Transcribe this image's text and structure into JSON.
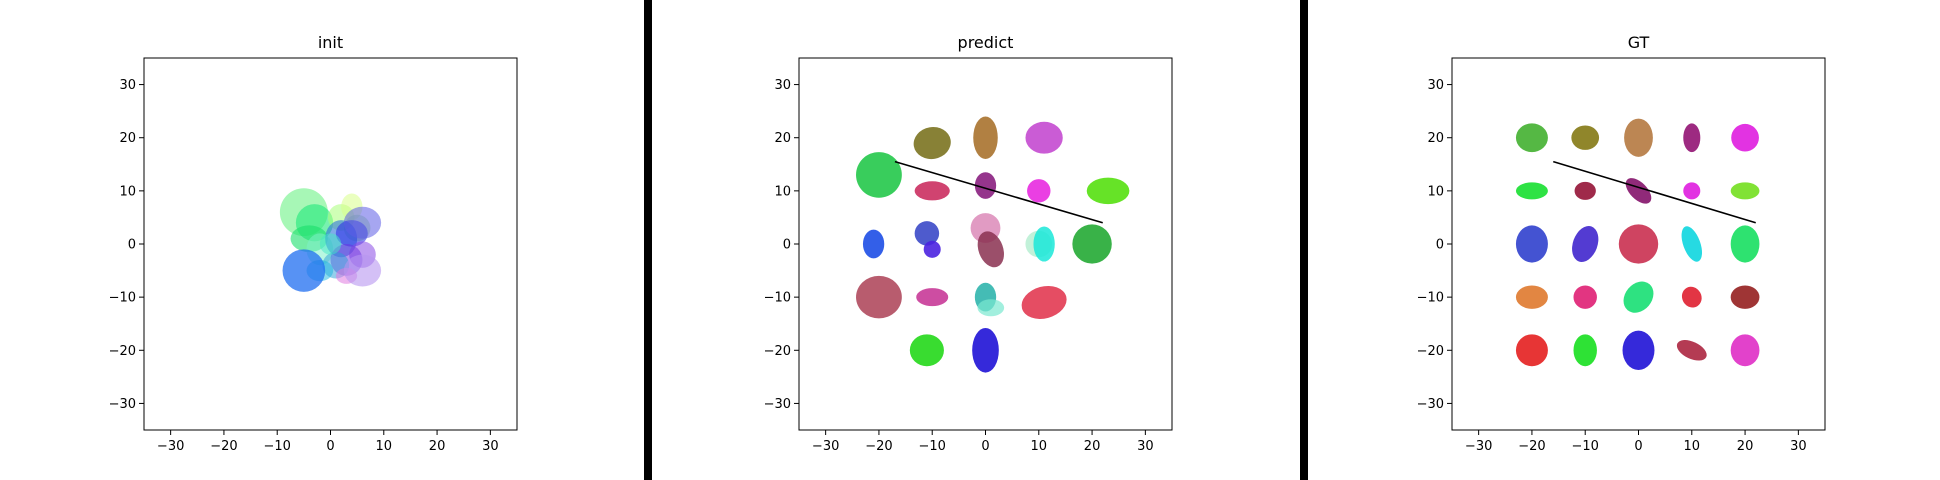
{
  "chart_data": [
    {
      "type": "scatter",
      "title": "init",
      "xlim": [
        -35,
        35
      ],
      "ylim": [
        -35,
        35
      ],
      "xticks": [
        -30,
        -20,
        -10,
        0,
        10,
        20,
        30
      ],
      "yticks": [
        -30,
        -20,
        -10,
        0,
        10,
        20,
        30
      ],
      "xlabel": "",
      "ylabel": "",
      "grid": false,
      "ellipses": [
        {
          "cx": -5,
          "cy": 6,
          "rx": 4.5,
          "ry": 4.5,
          "color": "#5ef07a",
          "opacity": 0.55
        },
        {
          "cx": -3,
          "cy": 4,
          "rx": 3.5,
          "ry": 3.5,
          "color": "#1ee87a",
          "opacity": 0.6
        },
        {
          "cx": 2,
          "cy": 5,
          "rx": 2.5,
          "ry": 2.5,
          "color": "#a9ff7a",
          "opacity": 0.55
        },
        {
          "cx": 4,
          "cy": 7,
          "rx": 2,
          "ry": 2.5,
          "color": "#d8ff8a",
          "opacity": 0.55
        },
        {
          "cx": 5,
          "cy": 3,
          "rx": 2.5,
          "ry": 2.5,
          "color": "#9bdb8a",
          "opacity": 0.5
        },
        {
          "cx": -4,
          "cy": 1,
          "rx": 3.5,
          "ry": 2.5,
          "color": "#19e06a",
          "opacity": 0.6
        },
        {
          "cx": -2,
          "cy": -1,
          "rx": 2.5,
          "ry": 3,
          "color": "#7ef0c8",
          "opacity": 0.55
        },
        {
          "cx": 2,
          "cy": 1,
          "rx": 3,
          "ry": 3.5,
          "color": "#2b73d8",
          "opacity": 0.6
        },
        {
          "cx": 4,
          "cy": 2,
          "rx": 3,
          "ry": 2.5,
          "color": "#2a2ae8",
          "opacity": 0.55
        },
        {
          "cx": 6,
          "cy": 4,
          "rx": 3.5,
          "ry": 3,
          "color": "#5c5ce6",
          "opacity": 0.55
        },
        {
          "cx": 6,
          "cy": -2,
          "rx": 2.5,
          "ry": 2.5,
          "color": "#8a4ae6",
          "opacity": 0.55
        },
        {
          "cx": 3,
          "cy": -3,
          "rx": 3,
          "ry": 3,
          "color": "#6b2ee0",
          "opacity": 0.5
        },
        {
          "cx": 1,
          "cy": -4,
          "rx": 2.5,
          "ry": 2.5,
          "color": "#2aa0d8",
          "opacity": 0.5
        },
        {
          "cx": 3,
          "cy": -6,
          "rx": 2,
          "ry": 1.5,
          "color": "#e07ae0",
          "opacity": 0.55
        },
        {
          "cx": 6,
          "cy": -5,
          "rx": 3.5,
          "ry": 3,
          "color": "#b896f0",
          "opacity": 0.6
        },
        {
          "cx": -2,
          "cy": -5,
          "rx": 2.5,
          "ry": 2,
          "color": "#19b6e0",
          "opacity": 0.5
        },
        {
          "cx": -5,
          "cy": -5,
          "rx": 4,
          "ry": 4,
          "color": "#1f6ef0",
          "opacity": 0.75
        },
        {
          "cx": 0,
          "cy": 0,
          "rx": 2,
          "ry": 2,
          "color": "#41e8c6",
          "opacity": 0.5
        }
      ],
      "lines": []
    },
    {
      "type": "scatter",
      "title": "predict",
      "xlim": [
        -35,
        35
      ],
      "ylim": [
        -35,
        35
      ],
      "xticks": [
        -30,
        -20,
        -10,
        0,
        10,
        20,
        30
      ],
      "yticks": [
        -30,
        -20,
        -10,
        0,
        10,
        20,
        30
      ],
      "xlabel": "",
      "ylabel": "",
      "grid": false,
      "ellipses": [
        {
          "cx": -10,
          "cy": 19,
          "rx": 3.5,
          "ry": 3,
          "color": "#7b7320",
          "opacity": 0.9,
          "angle": 10
        },
        {
          "cx": 0,
          "cy": 20,
          "rx": 2.3,
          "ry": 4,
          "color": "#a8722e",
          "opacity": 0.9
        },
        {
          "cx": 11,
          "cy": 20,
          "rx": 3.5,
          "ry": 3,
          "color": "#c44ad0",
          "opacity": 0.9
        },
        {
          "cx": -20,
          "cy": 13,
          "rx": 4.3,
          "ry": 4.3,
          "color": "#23c84a",
          "opacity": 0.9
        },
        {
          "cx": -10,
          "cy": 10,
          "rx": 3.3,
          "ry": 1.8,
          "color": "#cb2f60",
          "opacity": 0.9
        },
        {
          "cx": 0,
          "cy": 11,
          "rx": 2,
          "ry": 2.5,
          "color": "#8a1f80",
          "opacity": 0.9
        },
        {
          "cx": 10,
          "cy": 10,
          "rx": 2.2,
          "ry": 2.2,
          "color": "#e82ae0",
          "opacity": 0.9
        },
        {
          "cx": 23,
          "cy": 10,
          "rx": 4,
          "ry": 2.5,
          "color": "#55e010",
          "opacity": 0.9
        },
        {
          "cx": -21,
          "cy": 0,
          "rx": 2,
          "ry": 2.7,
          "color": "#1d4ee6",
          "opacity": 0.9
        },
        {
          "cx": -11,
          "cy": 2,
          "rx": 2.3,
          "ry": 2.3,
          "color": "#3b49c8",
          "opacity": 0.9
        },
        {
          "cx": -10,
          "cy": -1,
          "rx": 1.6,
          "ry": 1.6,
          "color": "#4b22e0",
          "opacity": 0.9
        },
        {
          "cx": 0,
          "cy": 3,
          "rx": 2.8,
          "ry": 2.8,
          "color": "#dc8ab8",
          "opacity": 0.85
        },
        {
          "cx": 1,
          "cy": -1,
          "rx": 2.3,
          "ry": 3.5,
          "color": "#8a3050",
          "opacity": 0.85,
          "angle": 20
        },
        {
          "cx": 10,
          "cy": 0,
          "rx": 2.5,
          "ry": 2.5,
          "color": "#9ae8c0",
          "opacity": 0.6
        },
        {
          "cx": 11,
          "cy": 0,
          "rx": 2,
          "ry": 3.3,
          "color": "#1ae8d8",
          "opacity": 0.85
        },
        {
          "cx": 20,
          "cy": 0,
          "rx": 3.7,
          "ry": 3.7,
          "color": "#23aa34",
          "opacity": 0.9
        },
        {
          "cx": -20,
          "cy": -10,
          "rx": 4.3,
          "ry": 4,
          "color": "#b04a5e",
          "opacity": 0.9
        },
        {
          "cx": -10,
          "cy": -10,
          "rx": 3,
          "ry": 1.7,
          "color": "#c83a98",
          "opacity": 0.9
        },
        {
          "cx": 0,
          "cy": -10,
          "rx": 2,
          "ry": 2.7,
          "color": "#23b0a8",
          "opacity": 0.85
        },
        {
          "cx": 1,
          "cy": -12,
          "rx": 2.5,
          "ry": 1.6,
          "color": "#7ae8d0",
          "opacity": 0.7
        },
        {
          "cx": 11,
          "cy": -11,
          "rx": 4.3,
          "ry": 3,
          "color": "#e23a52",
          "opacity": 0.9,
          "angle": 15
        },
        {
          "cx": -11,
          "cy": -20,
          "rx": 3.2,
          "ry": 3,
          "color": "#23d81a",
          "opacity": 0.9
        },
        {
          "cx": 0,
          "cy": -20,
          "rx": 2.5,
          "ry": 4.2,
          "color": "#2a1ed8",
          "opacity": 0.95
        }
      ],
      "lines": [
        {
          "x": [
            -17,
            22
          ],
          "y": [
            15.5,
            4
          ],
          "color": "#000000"
        }
      ]
    },
    {
      "type": "scatter",
      "title": "GT",
      "xlim": [
        -35,
        35
      ],
      "ylim": [
        -35,
        35
      ],
      "xticks": [
        -30,
        -20,
        -10,
        0,
        10,
        20,
        30
      ],
      "yticks": [
        -30,
        -20,
        -10,
        0,
        10,
        20,
        30
      ],
      "xlabel": "",
      "ylabel": "",
      "grid": false,
      "ellipses": [
        {
          "cx": -20,
          "cy": 20,
          "rx": 3,
          "ry": 2.7,
          "color": "#4cb43a",
          "opacity": 0.95
        },
        {
          "cx": -10,
          "cy": 20,
          "rx": 2.6,
          "ry": 2.3,
          "color": "#8a8020",
          "opacity": 0.95
        },
        {
          "cx": 0,
          "cy": 20,
          "rx": 2.7,
          "ry": 3.6,
          "color": "#b8804a",
          "opacity": 0.95
        },
        {
          "cx": 10,
          "cy": 20,
          "rx": 1.6,
          "ry": 2.7,
          "color": "#981f7a",
          "opacity": 0.95
        },
        {
          "cx": 20,
          "cy": 20,
          "rx": 2.6,
          "ry": 2.6,
          "color": "#e028e0",
          "opacity": 0.95
        },
        {
          "cx": -20,
          "cy": 10,
          "rx": 3,
          "ry": 1.6,
          "color": "#23e03a",
          "opacity": 0.95
        },
        {
          "cx": -10,
          "cy": 10,
          "rx": 2,
          "ry": 1.7,
          "color": "#9a1f40",
          "opacity": 0.95
        },
        {
          "cx": 0,
          "cy": 10,
          "rx": 1.6,
          "ry": 3,
          "color": "#8a1f72",
          "opacity": 0.95,
          "angle": 45
        },
        {
          "cx": 10,
          "cy": 10,
          "rx": 1.6,
          "ry": 1.6,
          "color": "#e028e0",
          "opacity": 0.95
        },
        {
          "cx": 20,
          "cy": 10,
          "rx": 2.7,
          "ry": 1.6,
          "color": "#7ae02a",
          "opacity": 0.95
        },
        {
          "cx": -20,
          "cy": 0,
          "rx": 3,
          "ry": 3.5,
          "color": "#3a4ad0",
          "opacity": 0.95
        },
        {
          "cx": -10,
          "cy": 0,
          "rx": 2.3,
          "ry": 3.5,
          "color": "#4a30d0",
          "opacity": 0.95,
          "angle": -20
        },
        {
          "cx": 0,
          "cy": 0,
          "rx": 3.7,
          "ry": 3.7,
          "color": "#cc3a58",
          "opacity": 0.95
        },
        {
          "cx": 10,
          "cy": 0,
          "rx": 1.6,
          "ry": 3.5,
          "color": "#1ad8e0",
          "opacity": 0.95,
          "angle": 20
        },
        {
          "cx": 20,
          "cy": 0,
          "rx": 2.7,
          "ry": 3.5,
          "color": "#23e068",
          "opacity": 0.95
        },
        {
          "cx": -20,
          "cy": -10,
          "rx": 3,
          "ry": 2.2,
          "color": "#e08038",
          "opacity": 0.95
        },
        {
          "cx": -10,
          "cy": -10,
          "rx": 2.2,
          "ry": 2.2,
          "color": "#e02a7a",
          "opacity": 0.95
        },
        {
          "cx": 0,
          "cy": -10,
          "rx": 2.5,
          "ry": 3.2,
          "color": "#23e07a",
          "opacity": 0.95,
          "angle": -40
        },
        {
          "cx": 10,
          "cy": -10,
          "rx": 1.8,
          "ry": 2,
          "color": "#e02a3a",
          "opacity": 0.95,
          "angle": 30
        },
        {
          "cx": 20,
          "cy": -10,
          "rx": 2.7,
          "ry": 2.2,
          "color": "#9a2a2a",
          "opacity": 0.95
        },
        {
          "cx": -20,
          "cy": -20,
          "rx": 3,
          "ry": 3,
          "color": "#e62a2a",
          "opacity": 0.95
        },
        {
          "cx": -10,
          "cy": -20,
          "rx": 2.2,
          "ry": 3,
          "color": "#23e02a",
          "opacity": 0.95
        },
        {
          "cx": 0,
          "cy": -20,
          "rx": 3,
          "ry": 3.7,
          "color": "#2a1ed8",
          "opacity": 0.95
        },
        {
          "cx": 10,
          "cy": -20,
          "rx": 3,
          "ry": 1.6,
          "color": "#b0304a",
          "opacity": 0.95,
          "angle": -25
        },
        {
          "cx": 20,
          "cy": -20,
          "rx": 2.7,
          "ry": 3,
          "color": "#e038c8",
          "opacity": 0.95
        }
      ],
      "lines": [
        {
          "x": [
            -16,
            22
          ],
          "y": [
            15.5,
            4
          ],
          "color": "#000000"
        }
      ]
    }
  ],
  "dividers": {
    "color": "#000000"
  }
}
